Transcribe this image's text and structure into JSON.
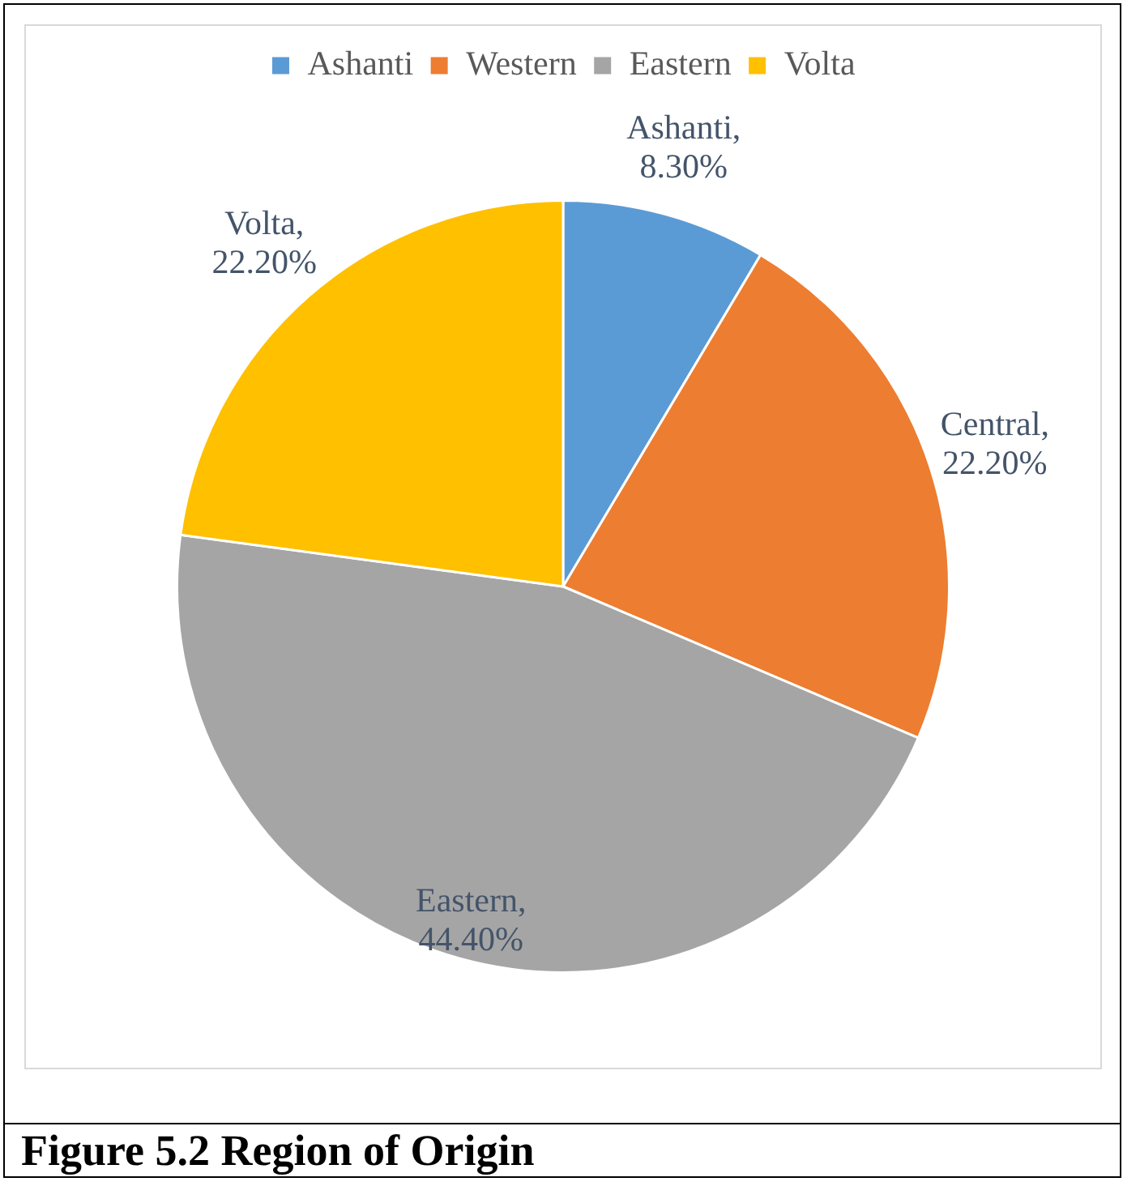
{
  "chart_data": {
    "type": "pie",
    "title": "Figure 5.2 Region of Origin",
    "categories": [
      "Ashanti",
      "Western",
      "Eastern",
      "Volta"
    ],
    "values": [
      8.3,
      22.2,
      44.4,
      22.2
    ],
    "colors": [
      "#5b9bd5",
      "#ed7d31",
      "#a5a5a5",
      "#ffc000"
    ],
    "value_labels": [
      "Ashanti, 8.30%",
      "Central, 22.20%",
      "Eastern, 44.40%",
      "Volta, 22.20%"
    ],
    "legend": "top"
  }
}
